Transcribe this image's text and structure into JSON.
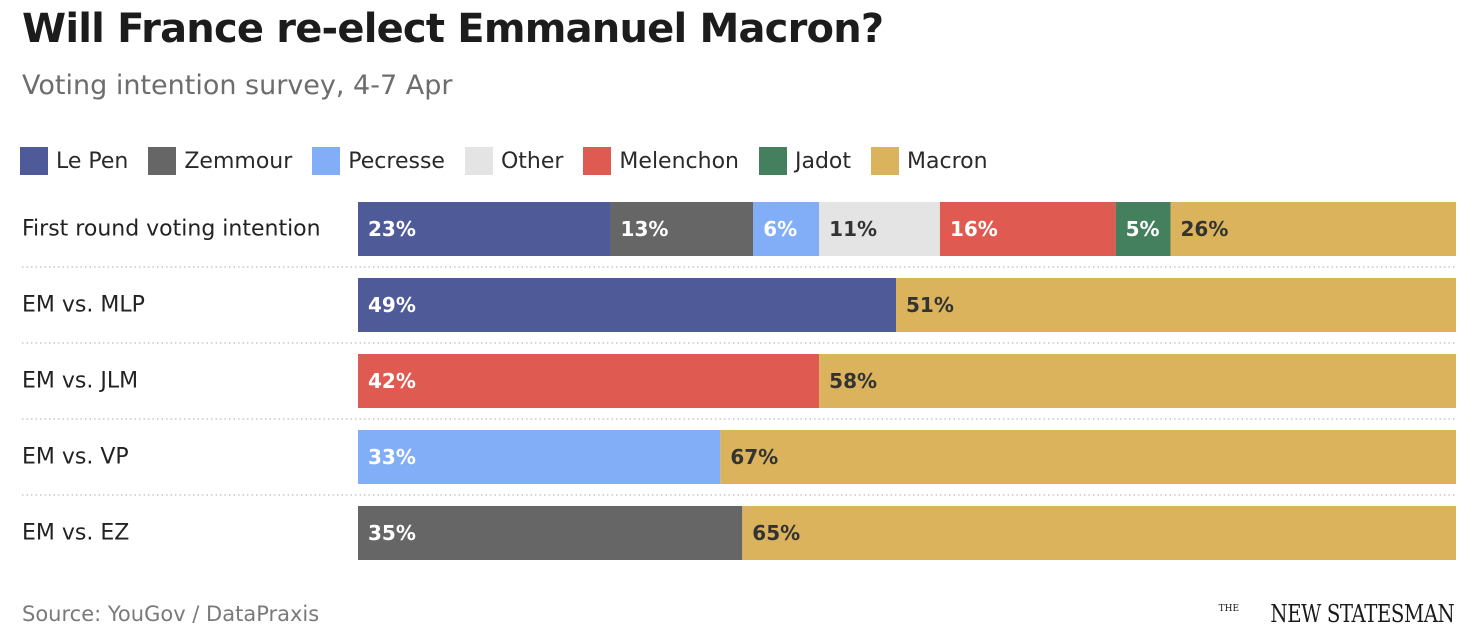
{
  "header": {
    "title": "Will France re-elect Emmanuel Macron?",
    "subtitle": "Voting intention survey, 4-7 Apr"
  },
  "legend": [
    {
      "label": "Le Pen",
      "color": "#4f5b99"
    },
    {
      "label": "Zemmour",
      "color": "#666666"
    },
    {
      "label": "Pecresse",
      "color": "#82adf7"
    },
    {
      "label": "Other",
      "color": "#e4e4e4"
    },
    {
      "label": "Melenchon",
      "color": "#df5a50"
    },
    {
      "label": "Jadot",
      "color": "#45805e"
    },
    {
      "label": "Macron",
      "color": "#dab35c"
    }
  ],
  "chart_data": {
    "type": "bar",
    "orientation": "horizontal",
    "stacked": true,
    "title": "Will France re-elect Emmanuel Macron?",
    "subtitle": "Voting intention survey, 4-7 Apr",
    "xlim": [
      0,
      100
    ],
    "unit": "%",
    "categories": [
      "First round voting intention",
      "EM vs. MLP",
      "EM vs. JLM",
      "EM vs. VP",
      "EM vs. EZ"
    ],
    "series": [
      {
        "name": "Le Pen",
        "color": "#4f5b99",
        "values": [
          23,
          49,
          0,
          0,
          0
        ]
      },
      {
        "name": "Zemmour",
        "color": "#666666",
        "values": [
          13,
          0,
          0,
          0,
          35
        ]
      },
      {
        "name": "Pecresse",
        "color": "#82adf7",
        "values": [
          6,
          0,
          0,
          33,
          0
        ]
      },
      {
        "name": "Other",
        "color": "#e4e4e4",
        "values": [
          11,
          0,
          0,
          0,
          0
        ]
      },
      {
        "name": "Melenchon",
        "color": "#df5a50",
        "values": [
          16,
          0,
          42,
          0,
          0
        ]
      },
      {
        "name": "Jadot",
        "color": "#45805e",
        "values": [
          5,
          0,
          0,
          0,
          0
        ]
      },
      {
        "name": "Macron",
        "color": "#dab35c",
        "values": [
          26,
          51,
          58,
          67,
          65
        ]
      }
    ]
  },
  "footer": {
    "source": "Source: YouGov / DataPraxis",
    "brand_small": "THE",
    "brand_main": "NEW STATESMAN"
  }
}
